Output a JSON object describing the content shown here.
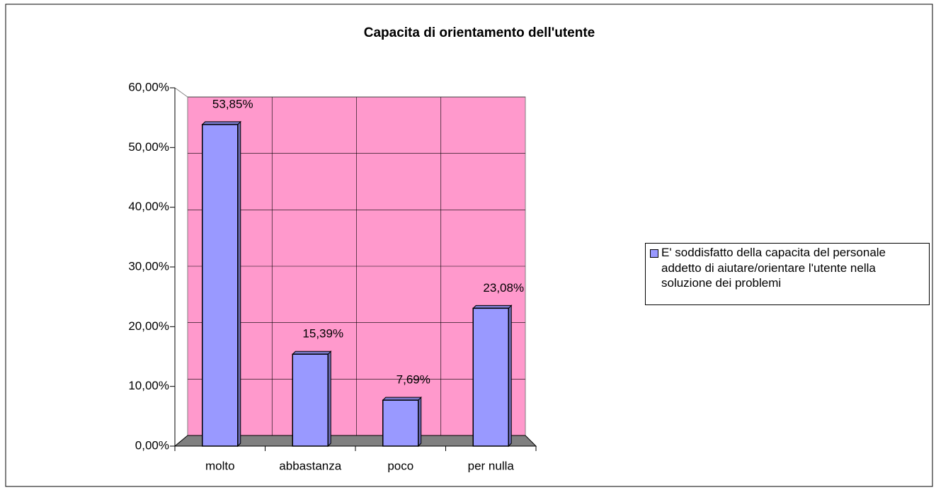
{
  "chart_data": {
    "type": "bar",
    "title": "Capacita di orientamento dell'utente",
    "categories": [
      "molto",
      "abbastanza",
      "poco",
      "per nulla"
    ],
    "series": [
      {
        "name": "E' soddisfatto della capacita del personale addetto di aiutare/orientare l'utente nella soluzione dei problemi",
        "color": "#9999ff",
        "values": [
          53.85,
          15.39,
          7.69,
          23.08
        ],
        "value_labels": [
          "53,85%",
          "15,39%",
          "7,69%",
          "23,08%"
        ]
      }
    ],
    "ylim": [
      0,
      60
    ],
    "yticks": [
      {
        "value": 0,
        "label": "0,00%"
      },
      {
        "value": 10,
        "label": "10,00%"
      },
      {
        "value": 20,
        "label": "20,00%"
      },
      {
        "value": 30,
        "label": "30,00%"
      },
      {
        "value": 40,
        "label": "40,00%"
      },
      {
        "value": 50,
        "label": "50,00%"
      },
      {
        "value": 60,
        "label": "60,00%"
      }
    ],
    "grid": true,
    "wall_color": "#ff99cc",
    "floor_color": "#808080",
    "legend": "right"
  }
}
